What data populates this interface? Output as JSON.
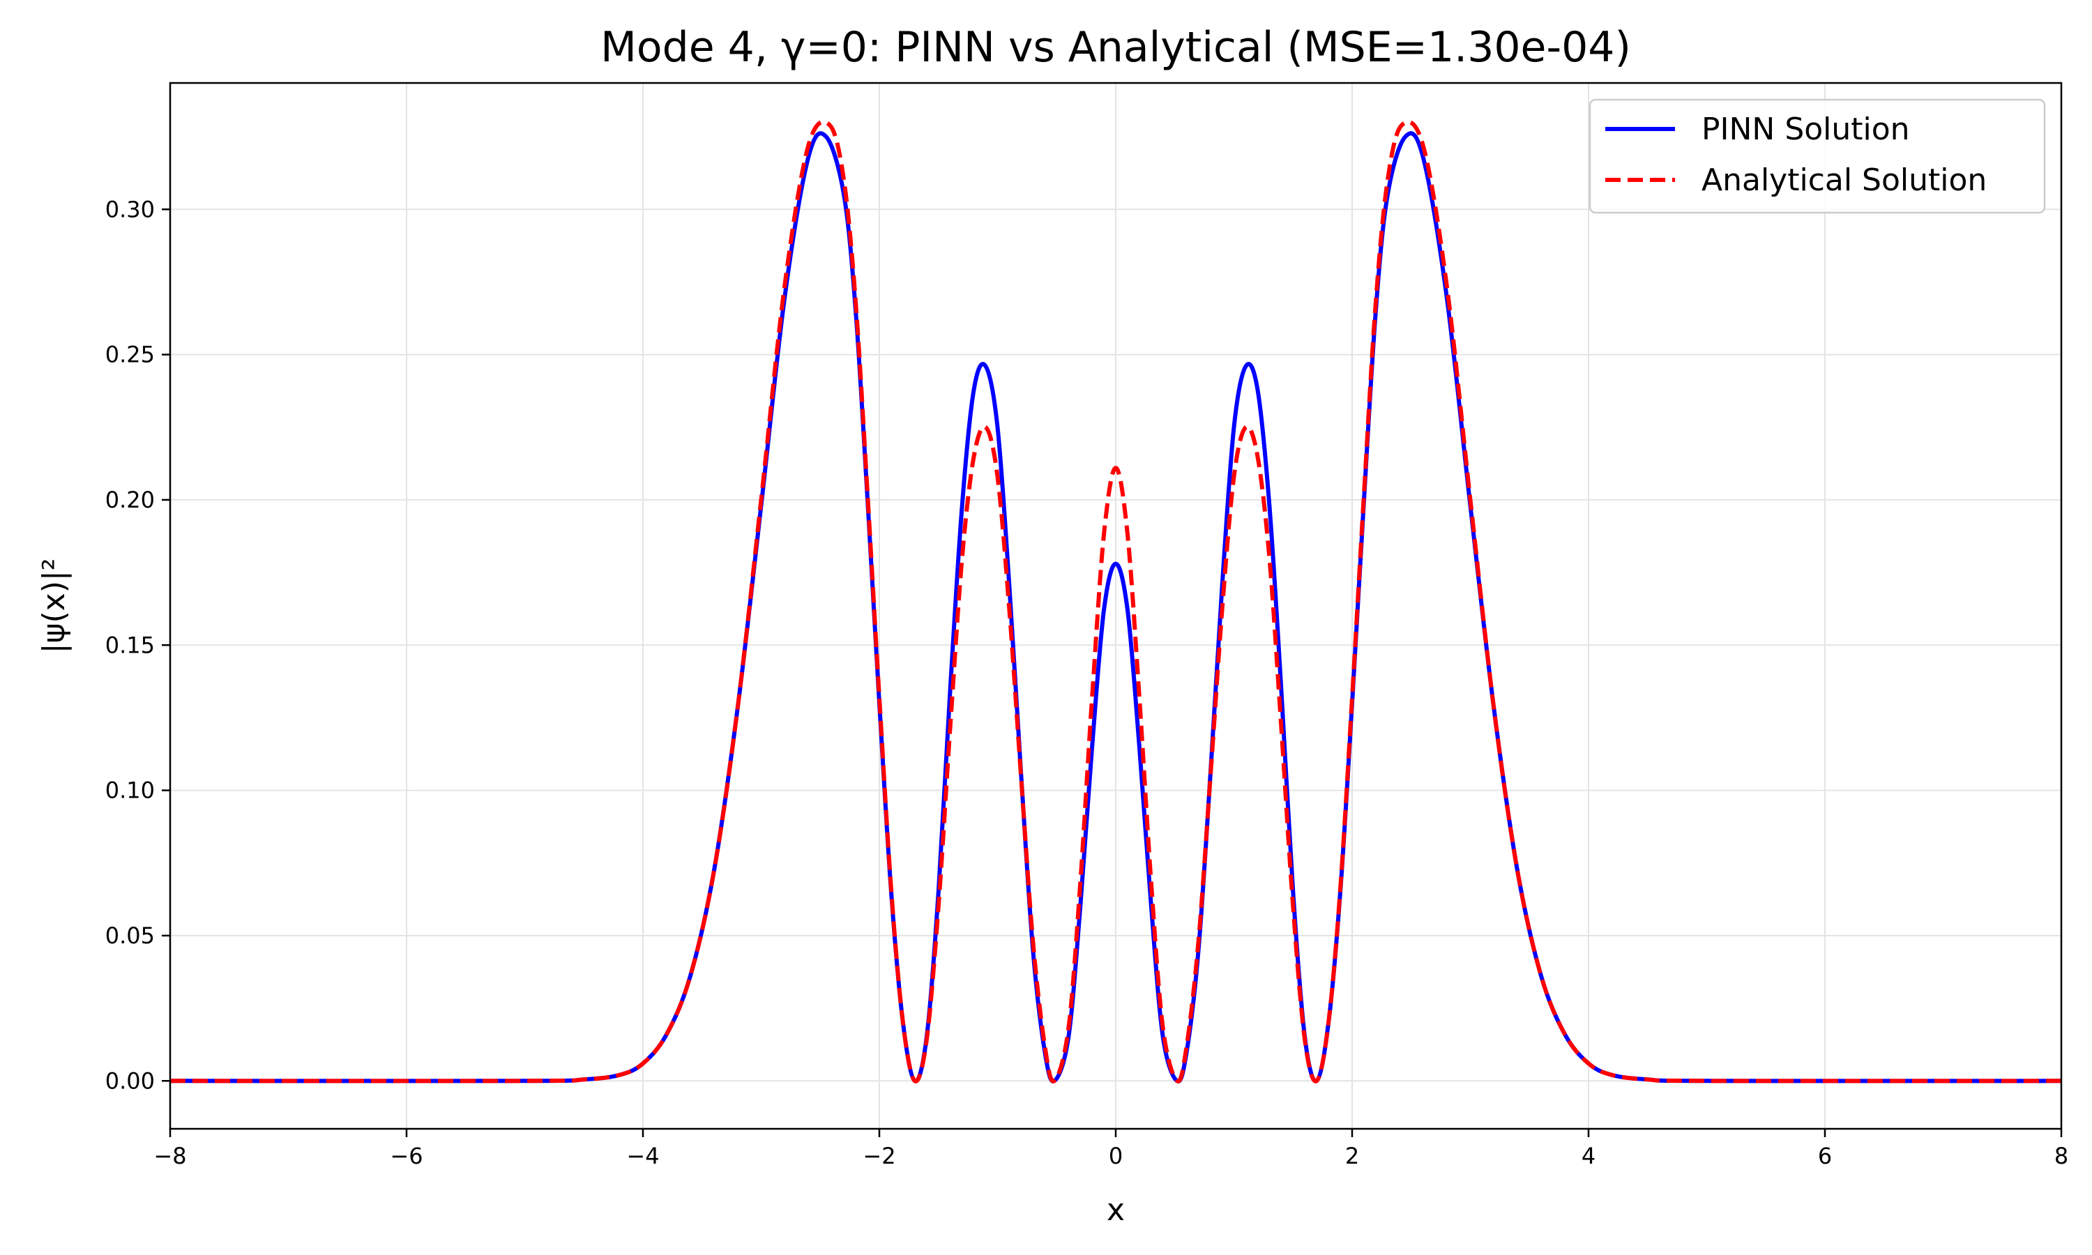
{
  "chart_data": {
    "type": "line",
    "title": "Mode 4, γ=0: PINN vs Analytical (MSE=1.30e-04)",
    "xlabel": "x",
    "ylabel": "|ψ(x)|²",
    "xlim": [
      -8,
      8
    ],
    "ylim": [
      -0.0165,
      0.3435
    ],
    "xticks": [
      -8,
      -6,
      -4,
      -2,
      0,
      2,
      4,
      6,
      8
    ],
    "xtick_labels": [
      "−8",
      "−6",
      "−4",
      "−2",
      "0",
      "2",
      "4",
      "6",
      "8"
    ],
    "yticks": [
      0.0,
      0.05,
      0.1,
      0.15,
      0.2,
      0.25,
      0.3
    ],
    "ytick_labels": [
      "0.00",
      "0.05",
      "0.10",
      "0.15",
      "0.20",
      "0.25",
      "0.30"
    ],
    "grid": true,
    "legend_position": "top-right",
    "series": [
      {
        "name": "PINN Solution",
        "color": "#0000ff",
        "style": "solid",
        "x": [
          -8,
          -5,
          -4.5,
          -4.2,
          -4.0,
          -3.8,
          -3.6,
          -3.4,
          -3.2,
          -3.0,
          -2.8,
          -2.6,
          -2.45,
          -2.3,
          -2.2,
          -2.1,
          -2.0,
          -1.9,
          -1.8,
          -1.7,
          -1.6,
          -1.5,
          -1.4,
          -1.3,
          -1.2,
          -1.1,
          -1.0,
          -0.9,
          -0.8,
          -0.7,
          -0.6,
          -0.52,
          -0.4,
          -0.3,
          -0.2,
          -0.1,
          0.0,
          0.1,
          0.2,
          0.3,
          0.4,
          0.52,
          0.6,
          0.7,
          0.8,
          0.9,
          1.0,
          1.1,
          1.2,
          1.3,
          1.4,
          1.5,
          1.6,
          1.7,
          1.8,
          1.9,
          2.0,
          2.1,
          2.2,
          2.3,
          2.45,
          2.6,
          2.8,
          3.0,
          3.2,
          3.4,
          3.6,
          3.8,
          4.0,
          4.2,
          4.5,
          5,
          8
        ],
        "y": [
          0.0,
          0.0,
          0.0005,
          0.002,
          0.006,
          0.016,
          0.036,
          0.072,
          0.128,
          0.198,
          0.27,
          0.318,
          0.325,
          0.305,
          0.265,
          0.2,
          0.13,
          0.065,
          0.02,
          0.0,
          0.015,
          0.065,
          0.135,
          0.198,
          0.238,
          0.246,
          0.225,
          0.17,
          0.105,
          0.045,
          0.01,
          0.0,
          0.015,
          0.06,
          0.115,
          0.162,
          0.178,
          0.162,
          0.115,
          0.06,
          0.015,
          0.0,
          0.01,
          0.045,
          0.105,
          0.17,
          0.225,
          0.246,
          0.238,
          0.198,
          0.135,
          0.065,
          0.015,
          0.0,
          0.02,
          0.065,
          0.13,
          0.2,
          0.265,
          0.305,
          0.325,
          0.318,
          0.27,
          0.198,
          0.128,
          0.072,
          0.036,
          0.016,
          0.006,
          0.002,
          0.0005,
          0.0,
          0.0
        ]
      },
      {
        "name": "Analytical Solution",
        "color": "#ff0000",
        "style": "dashed",
        "x": [
          -8,
          -5,
          -4.5,
          -4.2,
          -4.0,
          -3.8,
          -3.6,
          -3.4,
          -3.2,
          -3.0,
          -2.8,
          -2.6,
          -2.42,
          -2.3,
          -2.2,
          -2.1,
          -2.0,
          -1.9,
          -1.8,
          -1.7,
          -1.6,
          -1.5,
          -1.4,
          -1.3,
          -1.2,
          -1.1,
          -1.0,
          -0.9,
          -0.8,
          -0.7,
          -0.6,
          -0.52,
          -0.4,
          -0.3,
          -0.2,
          -0.1,
          0.0,
          0.1,
          0.2,
          0.3,
          0.4,
          0.52,
          0.6,
          0.7,
          0.8,
          0.9,
          1.0,
          1.1,
          1.2,
          1.3,
          1.4,
          1.5,
          1.6,
          1.7,
          1.8,
          1.9,
          2.0,
          2.1,
          2.2,
          2.3,
          2.42,
          2.6,
          2.8,
          3.0,
          3.2,
          3.4,
          3.6,
          3.8,
          4.0,
          4.2,
          4.5,
          5,
          8
        ],
        "y": [
          0.0,
          0.0,
          0.0005,
          0.002,
          0.006,
          0.016,
          0.036,
          0.072,
          0.128,
          0.2,
          0.274,
          0.322,
          0.329,
          0.31,
          0.268,
          0.202,
          0.132,
          0.066,
          0.02,
          0.0,
          0.014,
          0.06,
          0.122,
          0.18,
          0.215,
          0.225,
          0.208,
          0.162,
          0.104,
          0.048,
          0.012,
          0.0,
          0.018,
          0.068,
          0.132,
          0.188,
          0.211,
          0.188,
          0.132,
          0.068,
          0.018,
          0.0,
          0.012,
          0.048,
          0.104,
          0.162,
          0.208,
          0.225,
          0.215,
          0.18,
          0.122,
          0.06,
          0.014,
          0.0,
          0.02,
          0.066,
          0.132,
          0.202,
          0.268,
          0.31,
          0.329,
          0.322,
          0.274,
          0.2,
          0.128,
          0.072,
          0.036,
          0.016,
          0.006,
          0.002,
          0.0005,
          0.0,
          0.0
        ]
      }
    ]
  }
}
